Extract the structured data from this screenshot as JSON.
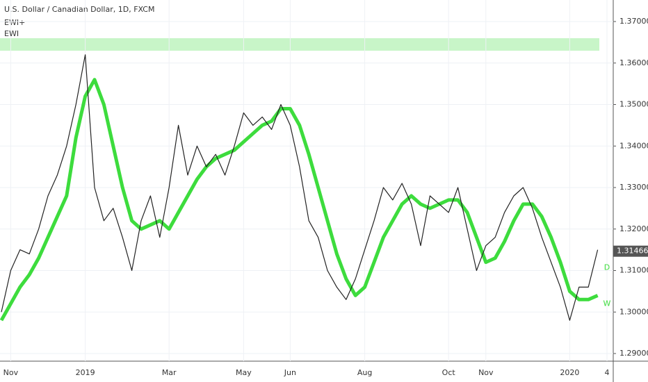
{
  "chart_data": {
    "type": "line",
    "title": "U.S. Dollar / Canadian Dollar, 1D, FXCM",
    "subtitle": "EWI+",
    "categories": [
      null,
      "Nov",
      null,
      null,
      null,
      null,
      null,
      null,
      null,
      "2019",
      null,
      null,
      null,
      null,
      null,
      null,
      null,
      null,
      "Mar",
      null,
      null,
      null,
      null,
      null,
      null,
      null,
      "May",
      null,
      null,
      null,
      null,
      "Jun",
      null,
      null,
      null,
      null,
      null,
      null,
      null,
      "Aug",
      null,
      null,
      null,
      null,
      null,
      null,
      null,
      null,
      "Oct",
      null,
      null,
      null,
      "Nov",
      null,
      null,
      null,
      null,
      null,
      null,
      null,
      null,
      "2020",
      null,
      null,
      null,
      "4"
    ],
    "values": [
      1.3,
      1.31,
      1.315,
      1.314,
      1.32,
      1.328,
      1.333,
      1.34,
      1.35,
      1.362,
      1.33,
      1.322,
      1.325,
      1.318,
      1.31,
      1.322,
      1.328,
      1.318,
      1.33,
      1.345,
      1.333,
      1.34,
      1.335,
      1.338,
      1.333,
      1.34,
      1.348,
      1.345,
      1.347,
      1.344,
      1.35,
      1.345,
      1.335,
      1.322,
      1.318,
      1.31,
      1.306,
      1.303,
      1.308,
      1.315,
      1.322,
      1.33,
      1.327,
      1.331,
      1.326,
      1.316,
      1.328,
      1.326,
      1.324,
      1.33,
      1.32,
      1.31,
      1.316,
      1.318,
      1.324,
      1.328,
      1.33,
      1.325,
      1.318,
      1.312,
      1.306,
      1.298,
      1.306,
      1.306,
      1.315,
      null
    ],
    "color": "#222222",
    "series": [
      {
        "name": "EWI",
        "color": "#3ddc3d",
        "values": [
          1.298,
          1.302,
          1.306,
          1.309,
          1.313,
          1.318,
          1.323,
          1.328,
          1.342,
          1.352,
          1.356,
          1.35,
          1.34,
          1.33,
          1.322,
          1.32,
          1.321,
          1.322,
          1.32,
          1.324,
          1.328,
          1.332,
          1.335,
          1.337,
          1.338,
          1.339,
          1.341,
          1.343,
          1.345,
          1.346,
          1.349,
          1.349,
          1.345,
          1.338,
          1.33,
          1.322,
          1.314,
          1.308,
          1.304,
          1.306,
          1.312,
          1.318,
          1.322,
          1.326,
          1.328,
          1.326,
          1.325,
          1.326,
          1.327,
          1.327,
          1.324,
          1.318,
          1.312,
          1.313,
          1.317,
          1.322,
          1.326,
          1.326,
          1.323,
          1.318,
          1.312,
          1.305,
          1.303,
          1.303,
          1.304,
          null
        ]
      }
    ],
    "ylim": [
      1.28816,
      1.37519
    ],
    "yticks": [
      {
        "value": 1.29,
        "label": "1.29000"
      },
      {
        "value": 1.3,
        "label": "1.30000"
      },
      {
        "value": 1.31,
        "label": "1.31000"
      },
      {
        "value": 1.32,
        "label": "1.32000"
      },
      {
        "value": 1.33,
        "label": "1.33000"
      },
      {
        "value": 1.34,
        "label": "1.34000"
      },
      {
        "value": 1.35,
        "label": "1.35000"
      },
      {
        "value": 1.36,
        "label": "1.36000"
      },
      {
        "value": 1.37,
        "label": "1.37000"
      }
    ],
    "grid": true,
    "current_price": 1.31466,
    "current_price_color": "#555555",
    "annotations": [
      {
        "text": "D",
        "value": 1.3107
      },
      {
        "text": "W",
        "value": 1.302
      }
    ]
  }
}
